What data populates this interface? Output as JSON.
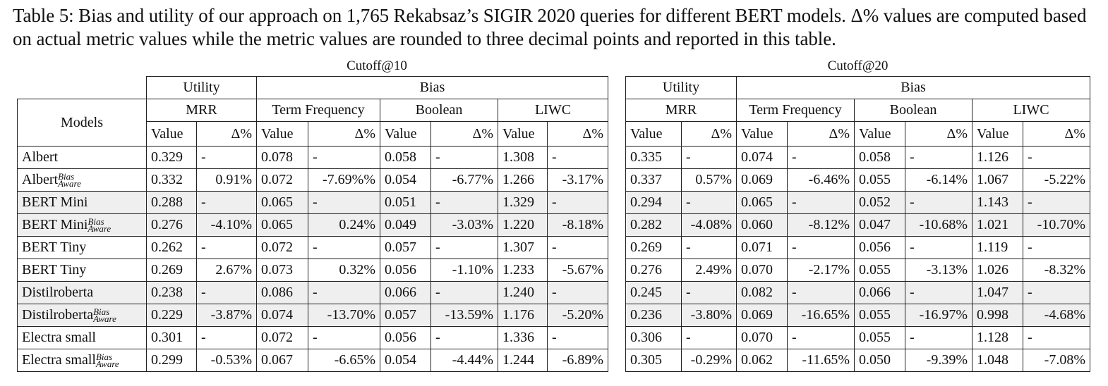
{
  "caption": "Table 5: Bias and utility of our approach on 1,765 Rekabsaz’s SIGIR 2020 queries for different BERT models. Δ% values are computed based on actual metric values while the metric values are rounded to three decimal points and reported in this table.",
  "cutoff10_title": "Cutoff@10",
  "cutoff20_title": "Cutoff@20",
  "headers": {
    "models": "Models",
    "utility": "Utility",
    "bias": "Bias",
    "mrr": "MRR",
    "tf": "Term Frequency",
    "boolean": "Boolean",
    "liwc": "LIWC",
    "value": "Value",
    "delta": "Δ%"
  },
  "bias_aware_super": "Bias",
  "bias_aware_sub": "Aware",
  "rows": [
    {
      "model": "Albert",
      "aware": false,
      "c10": [
        "0.329",
        "-",
        "0.078",
        "-",
        "0.058",
        "-",
        "1.308",
        "-"
      ],
      "c20": [
        "0.335",
        "-",
        "0.074",
        "-",
        "0.058",
        "-",
        "1.126",
        "-"
      ]
    },
    {
      "model": "Albert",
      "aware": true,
      "c10": [
        "0.332",
        "0.91%",
        "0.072",
        "-7.69%%",
        "0.054",
        "-6.77%",
        "1.266",
        "-3.17%"
      ],
      "c20": [
        "0.337",
        "0.57%",
        "0.069",
        "-6.46%",
        "0.055",
        "-6.14%",
        "1.067",
        "-5.22%"
      ]
    },
    {
      "model": "BERT Mini",
      "aware": false,
      "c10": [
        "0.288",
        "-",
        "0.065",
        "-",
        "0.051",
        "-",
        "1.329",
        "-"
      ],
      "c20": [
        "0.294",
        "-",
        "0.065",
        "-",
        "0.052",
        "-",
        "1.143",
        "-"
      ]
    },
    {
      "model": "BERT Mini",
      "aware": true,
      "c10": [
        "0.276",
        "-4.10%",
        "0.065",
        "0.24%",
        "0.049",
        "-3.03%",
        "1.220",
        "-8.18%"
      ],
      "c20": [
        "0.282",
        "-4.08%",
        "0.060",
        "-8.12%",
        "0.047",
        "-10.68%",
        "1.021",
        "-10.70%"
      ]
    },
    {
      "model": "BERT Tiny",
      "aware": false,
      "c10": [
        "0.262",
        "-",
        "0.072",
        "-",
        "0.057",
        "-",
        "1.307",
        "-"
      ],
      "c20": [
        "0.269",
        "-",
        "0.071",
        "-",
        "0.056",
        "-",
        "1.119",
        "-"
      ]
    },
    {
      "model": "BERT Tiny",
      "aware": false,
      "c10": [
        "0.269",
        "2.67%",
        "0.073",
        "0.32%",
        "0.056",
        "-1.10%",
        "1.233",
        "-5.67%"
      ],
      "c20": [
        "0.276",
        "2.49%",
        "0.070",
        "-2.17%",
        "0.055",
        "-3.13%",
        "1.026",
        "-8.32%"
      ]
    },
    {
      "model": "Distilroberta",
      "aware": false,
      "c10": [
        "0.238",
        "-",
        "0.086",
        "-",
        "0.066",
        "-",
        "1.240",
        "-"
      ],
      "c20": [
        "0.245",
        "-",
        "0.082",
        "-",
        "0.066",
        "-",
        "1.047",
        "-"
      ]
    },
    {
      "model": "Distilroberta",
      "aware": true,
      "c10": [
        "0.229",
        "-3.87%",
        "0.074",
        "-13.70%",
        "0.057",
        "-13.59%",
        "1.176",
        "-5.20%"
      ],
      "c20": [
        "0.236",
        "-3.80%",
        "0.069",
        "-16.65%",
        "0.055",
        "-16.97%",
        "0.998",
        "-4.68%"
      ]
    },
    {
      "model": "Electra small",
      "aware": false,
      "c10": [
        "0.301",
        "-",
        "0.072",
        "-",
        "0.056",
        "-",
        "1.336",
        "-"
      ],
      "c20": [
        "0.306",
        "-",
        "0.070",
        "-",
        "0.055",
        "-",
        "1.128",
        "-"
      ]
    },
    {
      "model": "Electra small",
      "aware": true,
      "c10": [
        "0.299",
        "-0.53%",
        "0.067",
        "-6.65%",
        "0.054",
        "-4.44%",
        "1.244",
        "-6.89%"
      ],
      "c20": [
        "0.305",
        "-0.29%",
        "0.062",
        "-11.65%",
        "0.050",
        "-9.39%",
        "1.048",
        "-7.08%"
      ]
    }
  ]
}
